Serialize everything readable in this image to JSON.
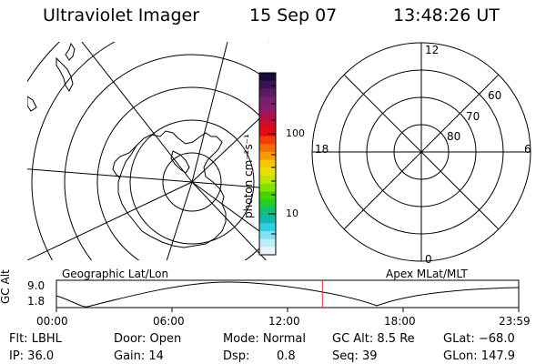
{
  "header": {
    "title": "Ultraviolet Imager",
    "date": "15 Sep 07",
    "time": "13:48:26 UT"
  },
  "colorbar": {
    "unit_label": "photon cm⁻²s⁻¹",
    "tick_labels": [
      "100",
      "10"
    ],
    "colors": [
      "#1a0a3a",
      "#3a1250",
      "#5a1a66",
      "#7a1e6e",
      "#8e1a6a",
      "#b0104a",
      "#d00c28",
      "#e60a10",
      "#f04000",
      "#f46e00",
      "#f79c00",
      "#f9c400",
      "#e8e000",
      "#b8e800",
      "#80e400",
      "#40d800",
      "#20cc30",
      "#10c070",
      "#10b8b0",
      "#30d0e0",
      "#80e0f0",
      "#c0ecf6",
      "#e8f4f8"
    ]
  },
  "geo_panel": {
    "label": "Geographic Lat/Lon"
  },
  "apex_panel": {
    "label": "Apex MLat/MLT",
    "mlt_labels": [
      "12",
      "18",
      "6",
      "0"
    ],
    "lat_labels": [
      "60",
      "70",
      "80"
    ]
  },
  "timeline": {
    "axis_label": "GC Alt",
    "y_ticks": [
      "9.0",
      "1.8"
    ],
    "x_ticks": [
      "00:00",
      "06:00",
      "12:00",
      "18:00",
      "23:59"
    ],
    "current_fraction": 0.5753,
    "marker_color": "#e03030"
  },
  "status": {
    "row1": {
      "flt": "Flt: LBHL",
      "door": "Door: Open",
      "mode": "Mode: Normal",
      "gc_alt": "GC Alt: 8.5 Re",
      "glat": "GLat: −68.0"
    },
    "row2": {
      "ip": "IP: 36.0",
      "gain": "Gain: 14",
      "dsp_label": "Dsp:",
      "dsp_value": "0.8",
      "seq": "Seq: 39",
      "glon": "GLon: 147.9"
    }
  }
}
